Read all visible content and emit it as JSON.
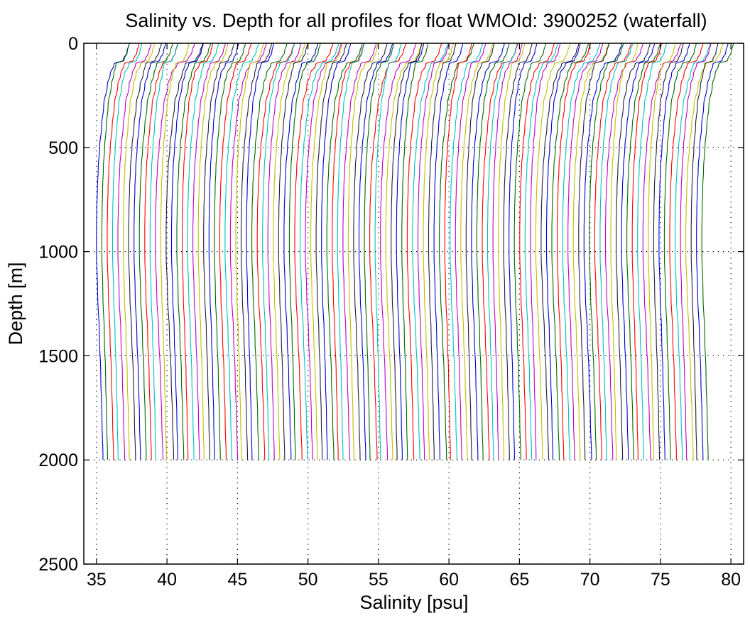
{
  "chart_data": {
    "type": "line",
    "title": "Salinity vs. Depth for all profiles for float WMOId: 3900252 (waterfall)",
    "xlabel": "Salinity [psu]",
    "ylabel": "Depth [m]",
    "xlim": [
      34.1,
      80.9
    ],
    "ylim": [
      0,
      2500
    ],
    "y_reversed": true,
    "grid": true,
    "xticks": [
      "35",
      "40",
      "45",
      "50",
      "55",
      "60",
      "65",
      "70",
      "75",
      "80"
    ],
    "yticks": [
      "0",
      "500",
      "1000",
      "1500",
      "2000",
      "2500"
    ],
    "waterfall": {
      "profile_count": 114,
      "offset_per_profile_psu": 0.38,
      "color_cycle": [
        "#0000cc",
        "#006600",
        "#ff0000",
        "#00bfbf",
        "#bf00bf",
        "#bfbf00",
        "#1f1f3f"
      ],
      "representative_profile": {
        "depth": [
          0,
          40,
          80,
          100,
          150,
          200,
          300,
          400,
          500,
          600,
          700,
          800,
          900,
          1000,
          1200,
          1400,
          1600,
          1800,
          2000
        ],
        "salinity_offset": [
          2.25,
          2.1,
          1.85,
          1.2,
          0.95,
          0.75,
          0.5,
          0.35,
          0.22,
          0.12,
          0.06,
          0.02,
          0.0,
          0.0,
          0.08,
          0.2,
          0.3,
          0.38,
          0.45
        ]
      },
      "first_profile_base_salinity": 35.0,
      "last_profile_base_salinity": 77.9
    }
  }
}
